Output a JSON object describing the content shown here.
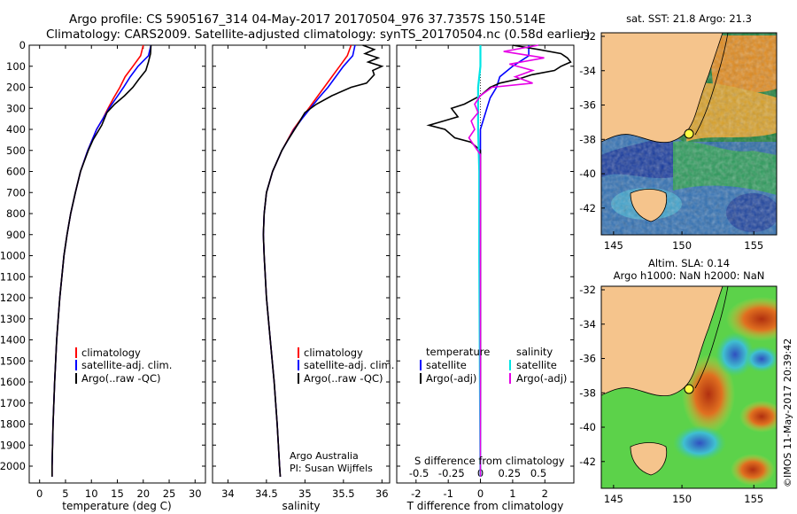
{
  "header": {
    "line1": "Argo profile: CS 5905167_314 04-May-2017 20170504_976 37.7357S 150.514E",
    "line2": "Climatology: CARS2009. Satellite-adjusted climatology: synTS_20170504.nc (0.58d earlier)"
  },
  "depth_ticks": [
    0,
    100,
    200,
    300,
    400,
    500,
    600,
    700,
    800,
    900,
    1000,
    1100,
    1200,
    1300,
    1400,
    1500,
    1600,
    1700,
    1800,
    1900,
    2000
  ],
  "colors": {
    "climatology": "#ff0000",
    "satellite": "#0000ff",
    "argo": "#000000",
    "salinity_sat": "#00e5e5",
    "salinity_argo": "#e600e6",
    "land": "#f5c48c"
  },
  "chart_data": [
    {
      "type": "line",
      "title": "",
      "xlabel": "temperature (deg C)",
      "ylabel": "depth",
      "xlim": [
        -2,
        32
      ],
      "ylim": [
        2080,
        0
      ],
      "xticks": [
        0,
        5,
        10,
        15,
        20,
        25,
        30
      ],
      "legend": [
        "climatology",
        "satellite-adj. clim.",
        "Argo(..raw -QC)"
      ],
      "series": [
        {
          "name": "climatology",
          "depth": [
            0,
            50,
            100,
            150,
            200,
            250,
            300,
            350,
            400,
            500,
            600,
            700,
            800,
            900,
            1000,
            1200,
            1400,
            1600,
            1800,
            2000,
            2050
          ],
          "values": [
            20.0,
            19.5,
            18.0,
            16.5,
            15.5,
            14.3,
            13.2,
            12.2,
            11.0,
            9.3,
            7.9,
            6.9,
            6.0,
            5.3,
            4.7,
            3.9,
            3.3,
            2.9,
            2.6,
            2.4,
            2.4
          ]
        },
        {
          "name": "satellite-adj. clim.",
          "depth": [
            0,
            50,
            100,
            150,
            200,
            250,
            300,
            350,
            400,
            500,
            600,
            700,
            800,
            900,
            1000,
            1200,
            1400,
            1600,
            1800,
            2000,
            2050
          ],
          "values": [
            21.5,
            21.0,
            19.0,
            17.5,
            16.2,
            14.8,
            13.4,
            12.2,
            11.0,
            9.3,
            7.9,
            6.9,
            6.0,
            5.3,
            4.7,
            3.9,
            3.3,
            2.9,
            2.6,
            2.4,
            2.4
          ]
        },
        {
          "name": "Argo(..raw -QC)",
          "depth": [
            0,
            40,
            80,
            120,
            160,
            200,
            240,
            280,
            320,
            380,
            450,
            500,
            600,
            700,
            800,
            900,
            1000,
            1200,
            1400,
            1600,
            1800,
            2000,
            2050
          ],
          "values": [
            21.5,
            21.4,
            21.0,
            20.5,
            19.2,
            18.0,
            16.4,
            14.5,
            13.0,
            12.0,
            10.3,
            9.4,
            7.9,
            6.9,
            6.0,
            5.3,
            4.7,
            3.9,
            3.3,
            2.9,
            2.6,
            2.4,
            2.4
          ]
        }
      ]
    },
    {
      "type": "line",
      "title": "",
      "xlabel": "salinity",
      "ylabel": "depth",
      "xlim": [
        33.8,
        36.1
      ],
      "ylim": [
        2080,
        0
      ],
      "xticks": [
        34,
        34.5,
        35,
        35.5,
        36
      ],
      "xticklabels": [
        "34",
        "34.5",
        "35",
        "35.5",
        "36"
      ],
      "legend": [
        "climatology",
        "satellite-adj. clim.",
        "Argo(..raw -QC)"
      ],
      "annotation": [
        "Argo Australia",
        "PI: Susan Wijffels"
      ],
      "series": [
        {
          "name": "climatology",
          "depth": [
            0,
            50,
            100,
            150,
            200,
            250,
            300,
            350,
            400,
            500,
            600,
            700,
            800,
            900,
            1000,
            1200,
            1400,
            1600,
            1800,
            2000,
            2050
          ],
          "values": [
            35.6,
            35.55,
            35.45,
            35.35,
            35.25,
            35.15,
            35.05,
            34.95,
            34.85,
            34.7,
            34.58,
            34.5,
            34.47,
            34.46,
            34.47,
            34.5,
            34.55,
            34.6,
            34.64,
            34.67,
            34.68
          ]
        },
        {
          "name": "satellite-adj. clim.",
          "depth": [
            0,
            50,
            100,
            150,
            200,
            250,
            300,
            350,
            400,
            500,
            600,
            700,
            800,
            900,
            1000,
            1200,
            1400,
            1600,
            1800,
            2000,
            2050
          ],
          "values": [
            35.65,
            35.62,
            35.5,
            35.4,
            35.3,
            35.18,
            35.07,
            34.96,
            34.86,
            34.7,
            34.58,
            34.5,
            34.47,
            34.46,
            34.47,
            34.5,
            34.55,
            34.6,
            34.64,
            34.67,
            34.68
          ]
        },
        {
          "name": "Argo(..raw -QC)",
          "depth": [
            0,
            20,
            40,
            60,
            80,
            100,
            120,
            140,
            160,
            180,
            200,
            240,
            280,
            320,
            380,
            450,
            500,
            600,
            700,
            800,
            900,
            1000,
            1200,
            1400,
            1600,
            1800,
            2000,
            2050
          ],
          "values": [
            35.75,
            35.9,
            35.78,
            35.95,
            35.82,
            36.0,
            35.88,
            35.9,
            35.85,
            35.8,
            35.6,
            35.35,
            35.15,
            35.0,
            34.9,
            34.78,
            34.7,
            34.58,
            34.5,
            34.47,
            34.46,
            34.47,
            34.5,
            34.55,
            34.6,
            34.64,
            34.67,
            34.68
          ]
        }
      ]
    },
    {
      "type": "line",
      "title": "",
      "xlabel": "T difference from climatology",
      "xlabel_top": "S difference from climatology",
      "ylabel": "depth",
      "xlim": [
        -2.6,
        2.9
      ],
      "ylim": [
        2080,
        0
      ],
      "xticks": [
        -2,
        -1,
        0,
        1,
        2
      ],
      "xticklabels_T": [
        "-2",
        "-1",
        "0",
        "1",
        "2"
      ],
      "xticklabels_S": [
        "-0.5",
        "-0.25",
        "0",
        "0.25",
        "0.5"
      ],
      "legend_temperature_title": "temperature",
      "legend_salinity_title": "salinity",
      "legend": [
        "satellite",
        "Argo(-adj)",
        "satellite",
        "Argo(-adj)"
      ],
      "series": [
        {
          "name": "temperature satellite",
          "depth": [
            0,
            50,
            100,
            150,
            200,
            250,
            300,
            400,
            500,
            1000,
            2050
          ],
          "values": [
            1.5,
            1.5,
            1.0,
            0.6,
            0.5,
            0.3,
            0.2,
            0.0,
            0.0,
            0.0,
            0.0
          ]
        },
        {
          "name": "temperature Argo(-adj)",
          "depth": [
            0,
            20,
            40,
            60,
            80,
            100,
            120,
            140,
            160,
            180,
            200,
            240,
            280,
            300,
            340,
            380,
            400,
            440,
            460,
            500,
            600,
            2050
          ],
          "values": [
            1.0,
            1.8,
            2.5,
            2.7,
            2.8,
            2.5,
            2.3,
            1.6,
            1.2,
            0.6,
            0.3,
            0.0,
            -0.5,
            -0.9,
            -0.7,
            -1.6,
            -1.1,
            -0.8,
            -0.3,
            0.0,
            0.0,
            0.0
          ]
        },
        {
          "name": "salinity satellite",
          "depth": [
            0,
            50,
            100,
            200,
            400,
            600,
            1000,
            2050
          ],
          "values": [
            0.0,
            0.0,
            0.0,
            -0.02,
            -0.02,
            -0.01,
            -0.01,
            0.0
          ]
        },
        {
          "name": "salinity Argo(-adj)",
          "depth": [
            0,
            30,
            60,
            90,
            120,
            150,
            180,
            200,
            240,
            280,
            320,
            360,
            400,
            440,
            480,
            520,
            600,
            2050
          ],
          "values": [
            0.5,
            0.2,
            0.55,
            0.25,
            0.45,
            0.3,
            0.45,
            0.1,
            0.0,
            -0.05,
            -0.02,
            -0.08,
            -0.05,
            -0.1,
            -0.05,
            0.0,
            0.0,
            0.0
          ]
        }
      ]
    }
  ],
  "map_sst": {
    "title": "sat. SST: 21.8  Argo: 21.3",
    "yticks": [
      "-32",
      "-34",
      "-36",
      "-38",
      "-40",
      "-42"
    ],
    "xticks": [
      "145",
      "150",
      "155"
    ]
  },
  "map_sla": {
    "title1": "Altim. SLA: 0.14",
    "title2": "Argo h1000: NaN h2000: NaN",
    "yticks": [
      "-32",
      "-34",
      "-36",
      "-38",
      "-40",
      "-42"
    ],
    "xticks": [
      "145",
      "150",
      "155"
    ]
  },
  "credit": "©IMOS 11-May-2017 20:39:42"
}
